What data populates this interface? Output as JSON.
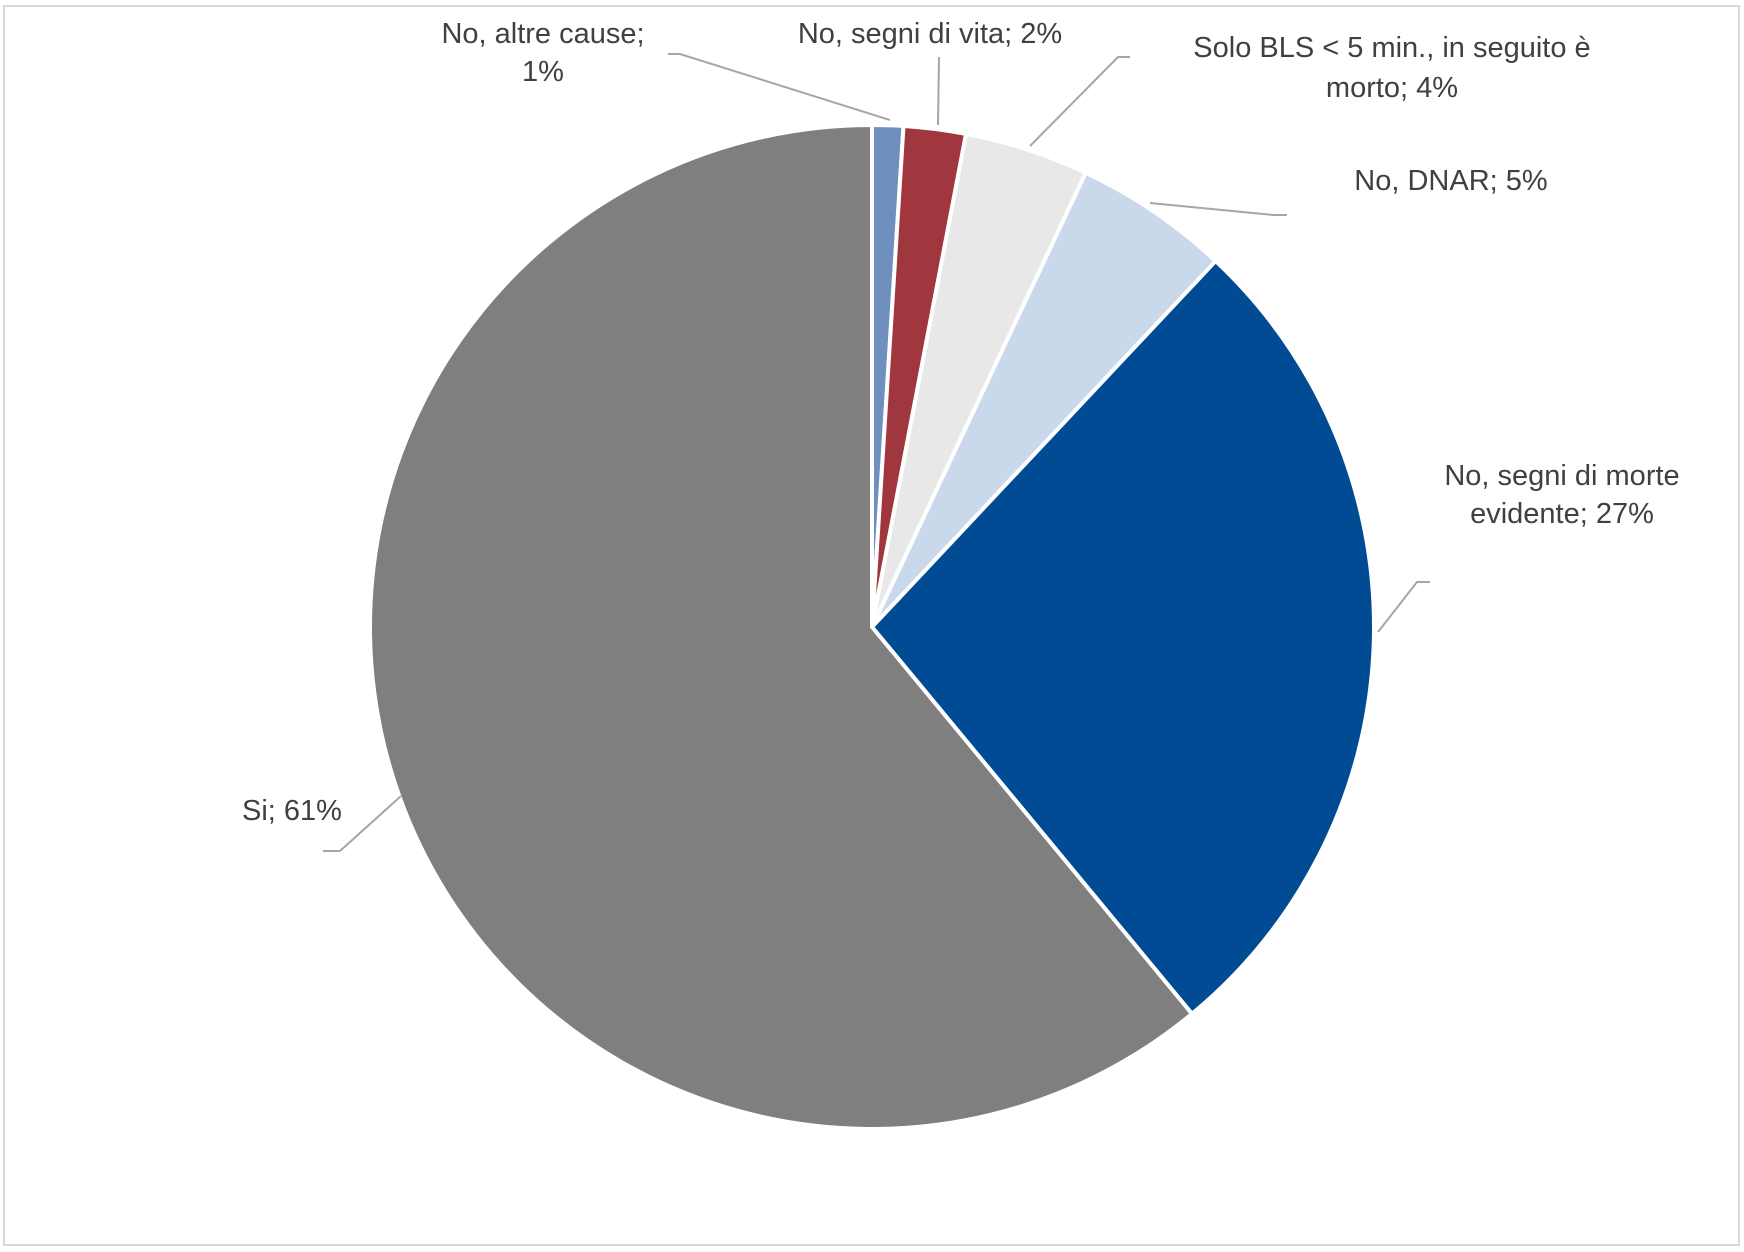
{
  "chart_data": {
    "type": "pie",
    "title": "",
    "start_angle_deg": 0,
    "direction": "clockwise",
    "slices": [
      {
        "label": "No, altre cause; 1%",
        "lines": [
          "No, altre cause;",
          "1%"
        ],
        "value": 1,
        "color": "#6f8fbf"
      },
      {
        "label": "No, segni di vita; 2%",
        "lines": [
          "No, segni di vita; 2%"
        ],
        "value": 2,
        "color": "#a0373e"
      },
      {
        "label": "Solo BLS < 5 min., in seguito è morto; 4%",
        "lines": [
          "Solo BLS < 5  min., in seguito è",
          "morto; 4%"
        ],
        "value": 4,
        "color": "#e8e8e8"
      },
      {
        "label": "No, DNAR; 5%",
        "lines": [
          "No, DNAR; 5%"
        ],
        "value": 5,
        "color": "#c9d8eb"
      },
      {
        "label": "No, segni di morte evidente; 27%",
        "lines": [
          "No, segni di morte",
          "evidente; 27%"
        ],
        "value": 27,
        "color": "#004b93"
      },
      {
        "label": "Si; 61%",
        "lines": [
          "Si; 61%"
        ],
        "value": 61,
        "color": "#7f7f7f"
      }
    ]
  }
}
